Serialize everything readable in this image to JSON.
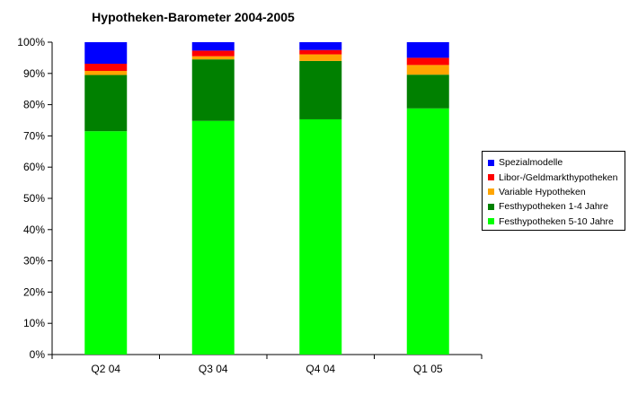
{
  "chart_data": {
    "type": "bar",
    "stacked": true,
    "percent_stacked": true,
    "title": "Hypotheken-Barometer 2004-2005",
    "categories": [
      "Q2 04",
      "Q3 04",
      "Q4 04",
      "Q1 05"
    ],
    "series": [
      {
        "name": "Festhypotheken 5-10 Jahre",
        "color": "#00ff00",
        "values": [
          71.5,
          74.8,
          75.3,
          78.8
        ]
      },
      {
        "name": "Festhypotheken 1-4 Jahre",
        "color": "#008000",
        "values": [
          18.0,
          19.7,
          18.7,
          10.8
        ]
      },
      {
        "name": "Variable Hypotheken",
        "color": "#ffa500",
        "values": [
          1.3,
          1.0,
          2.1,
          3.1
        ]
      },
      {
        "name": "Libor-/Geldmarkthypotheken",
        "color": "#ff0000",
        "values": [
          2.3,
          1.8,
          1.4,
          2.3
        ]
      },
      {
        "name": "Spezialmodelle",
        "color": "#0000ff",
        "values": [
          6.9,
          2.7,
          2.5,
          5.0
        ]
      }
    ],
    "yticks": [
      "0%",
      "10%",
      "20%",
      "30%",
      "40%",
      "50%",
      "60%",
      "70%",
      "80%",
      "90%",
      "100%"
    ],
    "ylim": [
      0,
      100
    ],
    "grid": false,
    "legend_position": "right",
    "legend_order": [
      "Spezialmodelle",
      "Libor-/Geldmarkthypotheken",
      "Variable Hypotheken",
      "Festhypotheken 1-4 Jahre",
      "Festhypotheken 5-10 Jahre"
    ]
  }
}
